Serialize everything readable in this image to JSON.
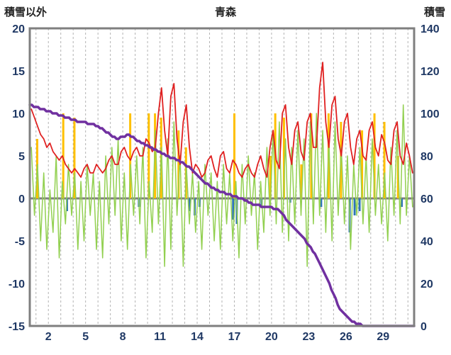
{
  "header": {
    "left_axis_title": "積雪以外",
    "title": "青森",
    "right_axis_title": "積雪"
  },
  "chart_data": {
    "type": "mixed",
    "title": "青森",
    "left_axis": {
      "label": "積雪以外",
      "min": -15,
      "max": 20,
      "ticks": [
        20,
        15,
        10,
        5,
        0,
        -5,
        -10,
        -15
      ]
    },
    "right_axis": {
      "label": "積雪",
      "min": 0,
      "max": 140,
      "ticks": [
        140,
        120,
        100,
        80,
        60,
        40,
        20,
        0
      ]
    },
    "x_axis": {
      "min": 0.5,
      "max": 31.5,
      "tick_labels": [
        2,
        5,
        8,
        11,
        14,
        17,
        20,
        23,
        26,
        29
      ],
      "day_gridlines": true
    },
    "colors": {
      "red_line": "#e02020",
      "green_line": "#92d050",
      "purple_line": "#7030a0",
      "orange_bars": "#ffc000",
      "blue_bars": "#2e75b6",
      "frame": "#7f7f7f",
      "gridline": "#b3b3b3",
      "zero_line": "#808080"
    },
    "series": [
      {
        "name": "orange-bars",
        "type": "bar",
        "axis": "left",
        "color": "#ffc000",
        "points": [
          {
            "x": 1.1,
            "v": 7
          },
          {
            "x": 3.2,
            "v": 10
          },
          {
            "x": 4.1,
            "v": 9.5
          },
          {
            "x": 8.6,
            "v": 10
          },
          {
            "x": 10.1,
            "v": 10
          },
          {
            "x": 10.6,
            "v": 10
          },
          {
            "x": 11.1,
            "v": 9.5
          },
          {
            "x": 12.5,
            "v": 8
          },
          {
            "x": 13.1,
            "v": 6
          },
          {
            "x": 17.0,
            "v": 10
          },
          {
            "x": 19.9,
            "v": 5
          },
          {
            "x": 20.3,
            "v": 10
          },
          {
            "x": 21.0,
            "v": 9.5
          },
          {
            "x": 22.4,
            "v": 4
          },
          {
            "x": 23.2,
            "v": 10
          },
          {
            "x": 24.6,
            "v": 10
          },
          {
            "x": 25.6,
            "v": 9
          },
          {
            "x": 27.3,
            "v": 8
          },
          {
            "x": 28.3,
            "v": 10
          },
          {
            "x": 29.1,
            "v": 9
          },
          {
            "x": 30.2,
            "v": 5
          }
        ]
      },
      {
        "name": "blue-bars",
        "type": "bar",
        "axis": "left",
        "color": "#2e75b6",
        "points": [
          {
            "x": 3.5,
            "v": -1.5
          },
          {
            "x": 9.3,
            "v": -1
          },
          {
            "x": 13.4,
            "v": -1.5
          },
          {
            "x": 13.8,
            "v": -2
          },
          {
            "x": 14.2,
            "v": -1
          },
          {
            "x": 16.9,
            "v": -2.5
          },
          {
            "x": 17.2,
            "v": -3
          },
          {
            "x": 19.2,
            "v": -1
          },
          {
            "x": 21.5,
            "v": -0.5
          },
          {
            "x": 24.0,
            "v": -1
          },
          {
            "x": 26.3,
            "v": -4
          },
          {
            "x": 26.7,
            "v": -2
          },
          {
            "x": 27.1,
            "v": -1.5
          },
          {
            "x": 30.5,
            "v": -1
          }
        ]
      },
      {
        "name": "green-line",
        "type": "line",
        "axis": "left",
        "color": "#92d050",
        "width": 1.5,
        "x_start": 0.625,
        "x_step": 0.25,
        "values": [
          6,
          -2,
          4,
          -5,
          3,
          -6,
          1,
          -4,
          5,
          -7,
          2,
          -3,
          4,
          -2,
          3,
          -6,
          2,
          -5,
          4,
          -2,
          3,
          -6,
          2,
          -7,
          5,
          -3,
          6,
          -2,
          7,
          -5,
          3,
          -6,
          4,
          -2,
          5,
          -3,
          6,
          -7,
          2,
          -4,
          8,
          -3,
          6,
          -8,
          7,
          -6,
          9,
          -2,
          5,
          -8,
          4,
          -3,
          3,
          -4,
          2,
          -6,
          4,
          -2,
          3,
          -5,
          2,
          -6,
          4,
          -3,
          3,
          -5,
          2,
          -7,
          4,
          -3,
          5,
          -2,
          3,
          -6,
          2,
          -4,
          6,
          -2,
          8,
          -3,
          9,
          -4,
          7,
          -5,
          6,
          -3,
          8,
          -2,
          7,
          -8,
          9,
          -3,
          10,
          -2,
          8,
          -4,
          7,
          -5,
          9,
          -2,
          6,
          -3,
          5,
          -6,
          4,
          -2,
          6,
          -3,
          5,
          -4,
          7,
          -2,
          4,
          -3,
          3,
          -5,
          6,
          -2,
          8,
          -3,
          11,
          -2,
          5,
          -1
        ]
      },
      {
        "name": "red-line",
        "type": "line",
        "axis": "left",
        "color": "#e02020",
        "width": 1.8,
        "x_start": 0.625,
        "x_step": 0.25,
        "values": [
          10.5,
          9.5,
          8.5,
          7.5,
          7,
          6,
          6.5,
          5.5,
          5,
          4.5,
          5,
          4,
          3.5,
          3,
          3.5,
          3,
          2.5,
          3.5,
          4,
          3,
          3,
          4,
          3.5,
          3,
          3.5,
          4.5,
          5,
          4,
          4,
          5.5,
          6,
          5,
          4.5,
          5.5,
          6,
          5,
          5,
          7,
          6.5,
          5.5,
          6,
          10,
          13,
          8,
          5,
          12,
          13.5,
          7,
          4,
          9,
          11,
          6,
          3,
          4,
          3.5,
          2.5,
          3,
          4.5,
          5,
          3.5,
          2.5,
          5,
          5.5,
          3.5,
          3,
          4.5,
          4,
          3,
          2.5,
          3.5,
          4,
          3,
          2.5,
          4,
          5,
          3.5,
          2.5,
          6,
          8,
          4.5,
          3.5,
          10,
          11,
          6,
          4,
          8,
          9,
          5.5,
          4.5,
          9,
          10,
          6,
          6,
          13,
          16,
          9,
          6,
          11,
          12,
          7,
          5,
          9,
          10,
          6,
          4,
          7,
          8,
          5,
          4.5,
          8,
          9,
          6,
          5,
          7.5,
          6.5,
          4.5,
          4,
          8,
          9,
          5,
          4,
          6.5,
          5,
          3
        ]
      },
      {
        "name": "purple-line",
        "type": "line",
        "axis": "right",
        "color": "#7030a0",
        "width": 3.5,
        "step_quantize": 1,
        "upsample": 6,
        "x_start": 0.5,
        "x_step": 1,
        "values": [
          104,
          102,
          100,
          98,
          96,
          95,
          92,
          88,
          90,
          86,
          83,
          80,
          78,
          74,
          68,
          64,
          62,
          60,
          57,
          56,
          55,
          48,
          42,
          34,
          22,
          8,
          2,
          0,
          0,
          0,
          0,
          0
        ]
      }
    ]
  }
}
